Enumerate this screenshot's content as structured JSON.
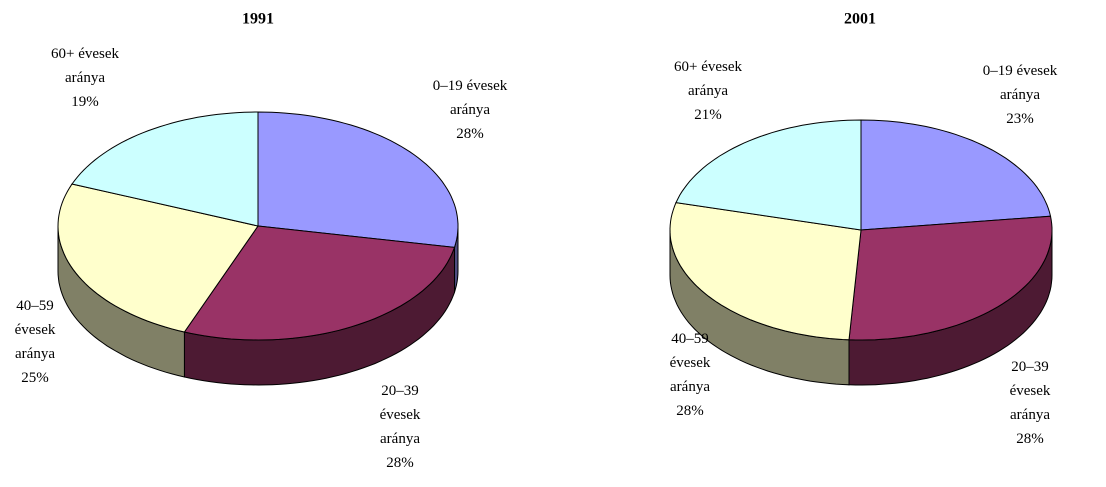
{
  "chart_data": [
    {
      "type": "pie3d",
      "title": "1991",
      "categories": [
        "0–19 évesek aránya",
        "20–39 évesek aránya",
        "40–59 évesek aránya",
        "60+ évesek aránya"
      ],
      "values": [
        28,
        28,
        25,
        19
      ],
      "value_labels": [
        "28%",
        "28%",
        "25%",
        "19%"
      ],
      "colors": [
        "#9999ff",
        "#993366",
        "#ffffcc",
        "#ccffff"
      ]
    },
    {
      "type": "pie3d",
      "title": "2001",
      "categories": [
        "0–19 évesek aránya",
        "20–39 évesek aránya",
        "40–59 évesek aránya",
        "60+ évesek aránya"
      ],
      "values": [
        23,
        28,
        28,
        21
      ],
      "value_labels": [
        "23%",
        "28%",
        "28%",
        "21%"
      ],
      "colors": [
        "#9999ff",
        "#993366",
        "#ffffcc",
        "#ccffff"
      ]
    }
  ]
}
